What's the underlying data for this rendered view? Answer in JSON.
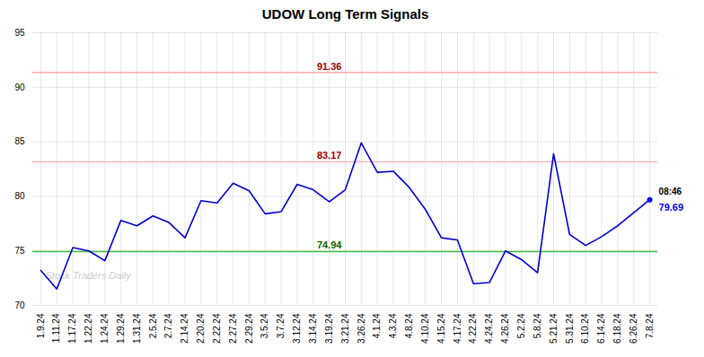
{
  "chart_data": {
    "type": "line",
    "title": "UDOW Long Term Signals",
    "watermark": "Stock Traders Daily",
    "categories": [
      "1.9.24",
      "1.11.24",
      "1.17.24",
      "1.22.24",
      "1.24.24",
      "1.29.24",
      "1.31.24",
      "2.5.24",
      "2.7.24",
      "2.14.24",
      "2.20.24",
      "2.22.24",
      "2.27.24",
      "2.29.24",
      "3.5.24",
      "3.7.24",
      "3.12.24",
      "3.14.24",
      "3.19.24",
      "3.21.24",
      "3.26.24",
      "4.1.24",
      "4.3.24",
      "4.8.24",
      "4.10.24",
      "4.15.24",
      "4.17.24",
      "4.22.24",
      "4.24.24",
      "4.26.24",
      "5.2.24",
      "5.8.24",
      "5.21.24",
      "5.31.24",
      "6.10.24",
      "6.14.24",
      "6.18.24",
      "6.26.24",
      "7.8.24"
    ],
    "values": [
      73.2,
      71.5,
      75.3,
      75.0,
      74.1,
      77.8,
      77.3,
      78.2,
      77.6,
      76.2,
      79.6,
      79.4,
      81.2,
      80.5,
      78.4,
      78.6,
      81.1,
      80.6,
      79.5,
      80.6,
      84.9,
      82.2,
      82.3,
      80.8,
      78.8,
      76.2,
      76.0,
      72.0,
      72.1,
      75.0,
      74.2,
      73.0,
      83.9,
      76.5,
      75.5,
      76.3,
      77.3,
      78.5,
      79.69
    ],
    "color": "#0000cc",
    "hlines": [
      {
        "value": 91.36,
        "label": "91.36",
        "color": "#ffaaaa",
        "label_color": "#990000"
      },
      {
        "value": 83.17,
        "label": "83.17",
        "color": "#ffaaaa",
        "label_color": "#990000"
      },
      {
        "value": 74.94,
        "label": "74.94",
        "color": "#44bb44",
        "label_color": "#006600"
      }
    ],
    "last_point": {
      "color": "#0000ff",
      "time_label": "08:46",
      "value_label": "79.69"
    },
    "ylim": [
      70,
      95
    ],
    "yticks": [
      70,
      75,
      80,
      85,
      90,
      95
    ],
    "grid": true
  }
}
